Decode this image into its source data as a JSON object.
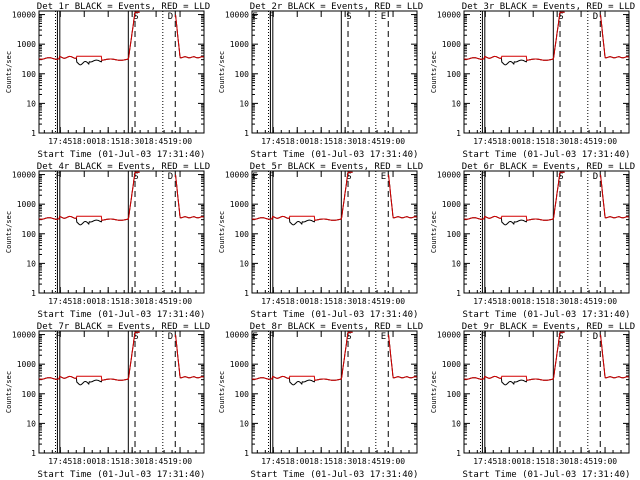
{
  "chart_data": [
    {
      "type": "line",
      "title": "Det 1r BLACK = Events, RED = LLD",
      "has_data": true,
      "ylabel": "Counts/sec",
      "xlabel": "Start Time (01-Jul-03 17:31:40)",
      "xticks": [
        "17:45",
        "18:00",
        "18:15",
        "18:30",
        "18:45",
        "19:00"
      ],
      "yticks": [
        "1",
        "10",
        "100",
        "1000",
        "10000"
      ],
      "yscale": "log",
      "annotations": [
        "S",
        "D"
      ]
    },
    {
      "type": "line",
      "title": "Det 2r BLACK = Events, RED = LLD",
      "has_data": false,
      "ylabel": "Counts/sec",
      "xlabel": "Start Time (01-Jul-03 17:31:40)",
      "xticks": [
        "17:45",
        "18:00",
        "18:15",
        "18:30",
        "18:45",
        "19:00"
      ],
      "yticks": [
        "1",
        "10",
        "100",
        "1000",
        "10000"
      ],
      "yscale": "log",
      "annotations": [
        "E",
        "F",
        "S",
        "E"
      ]
    },
    {
      "type": "line",
      "title": "Det 3r BLACK = Events, RED = LLD",
      "has_data": true,
      "ylabel": "Counts/sec",
      "xlabel": "Start Time (01-Jul-03 17:31:40)",
      "xticks": [
        "17:45",
        "18:00",
        "18:15",
        "18:30",
        "18:45",
        "19:00"
      ],
      "yticks": [
        "1",
        "10",
        "100",
        "1000",
        "10000"
      ],
      "yscale": "log",
      "annotations": [
        "S",
        "D"
      ]
    },
    {
      "type": "line",
      "title": "Det 4r BLACK = Events, RED = LLD",
      "has_data": true,
      "ylabel": "Counts/sec",
      "xlabel": "Start Time (01-Jul-03 17:31:40)",
      "xticks": [
        "17:45",
        "18:00",
        "18:15",
        "18:30",
        "18:45",
        "19:00"
      ],
      "yticks": [
        "1",
        "10",
        "100",
        "1000",
        "10000"
      ],
      "yscale": "log",
      "annotations": [
        "F",
        "S",
        "D"
      ]
    },
    {
      "type": "line",
      "title": "Det 5r BLACK = Events, RED = LLD",
      "has_data": true,
      "ylabel": "Counts/sec",
      "xlabel": "Start Time (01-Jul-03 17:31:40)",
      "xticks": [
        "17:45",
        "18:00",
        "18:15",
        "18:30",
        "18:45",
        "19:00"
      ],
      "yticks": [
        "1",
        "10",
        "100",
        "1000",
        "10000"
      ],
      "yscale": "log",
      "annotations": [
        "E",
        "F",
        "S",
        "E"
      ]
    },
    {
      "type": "line",
      "title": "Det 6r BLACK = Events, RED = LLD",
      "has_data": true,
      "ylabel": "Counts/sec",
      "xlabel": "Start Time (01-Jul-03 17:31:40)",
      "xticks": [
        "17:45",
        "18:00",
        "18:15",
        "18:30",
        "18:45",
        "19:00"
      ],
      "yticks": [
        "1",
        "10",
        "100",
        "1000",
        "10000"
      ],
      "yscale": "log",
      "annotations": [
        "F",
        "S",
        "D"
      ]
    },
    {
      "type": "line",
      "title": "Det 7r BLACK = Events, RED = LLD",
      "has_data": true,
      "ylabel": "Counts/sec",
      "xlabel": "Start Time (01-Jul-03 17:31:40)",
      "xticks": [
        "17:45",
        "18:00",
        "18:15",
        "18:30",
        "18:45",
        "19:00"
      ],
      "yticks": [
        "1",
        "10",
        "100",
        "1000",
        "10000"
      ],
      "yscale": "log",
      "annotations": [
        "F",
        "S",
        "D"
      ]
    },
    {
      "type": "line",
      "title": "Det 8r BLACK = Events, RED = LLD",
      "has_data": true,
      "ylabel": "Counts/sec",
      "xlabel": "Start Time (01-Jul-03 17:31:40)",
      "xticks": [
        "17:45",
        "18:00",
        "18:15",
        "18:30",
        "18:45",
        "19:00"
      ],
      "yticks": [
        "1",
        "10",
        "100",
        "1000",
        "10000"
      ],
      "yscale": "log",
      "annotations": [
        "E",
        "F",
        "S",
        "E"
      ]
    },
    {
      "type": "line",
      "title": "Det 9r BLACK = Events, RED = LLD",
      "has_data": true,
      "ylabel": "Counts/sec",
      "xlabel": "Start Time (01-Jul-03 17:31:40)",
      "xticks": [
        "17:45",
        "18:00",
        "18:15",
        "18:30",
        "18:45",
        "19:00"
      ],
      "yticks": [
        "1",
        "10",
        "100",
        "1000",
        "10000"
      ],
      "yscale": "log",
      "annotations": [
        "F",
        "S",
        "D"
      ]
    }
  ],
  "series_colors": {
    "events": "#000000",
    "lld": "#d40000"
  }
}
